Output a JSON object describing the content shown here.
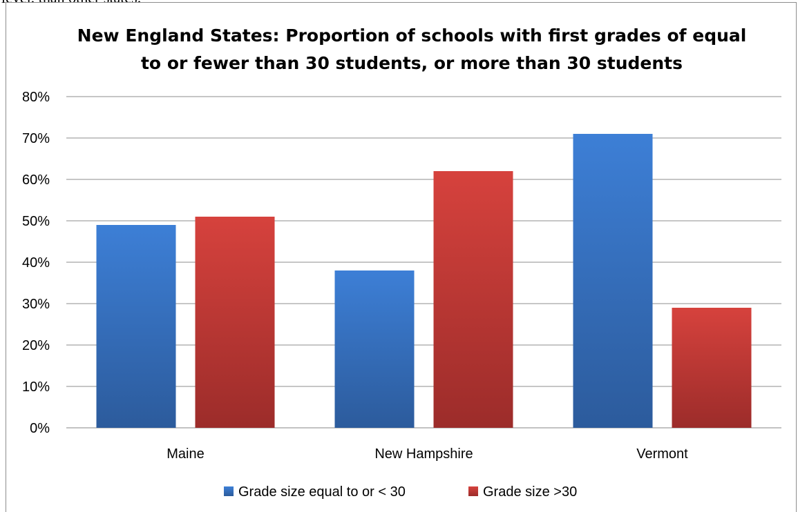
{
  "page": {
    "cropped_text": "level, than other states."
  },
  "chart_data": {
    "type": "bar",
    "title_lines": [
      "New England States: Proportion of schools with first grades of equal",
      "to or fewer than 30 students, or more than 30 students"
    ],
    "categories": [
      "Maine",
      "New Hampshire",
      "Vermont"
    ],
    "series": [
      {
        "name": "Grade size equal to or < 30",
        "values": [
          0.49,
          0.38,
          0.71
        ],
        "color": "#3b73c0"
      },
      {
        "name": "Grade size >30",
        "values": [
          0.51,
          0.62,
          0.29
        ],
        "color": "#c0403b"
      }
    ],
    "ylim": [
      0,
      0.8
    ],
    "yticks": [
      0,
      0.1,
      0.2,
      0.3,
      0.4,
      0.5,
      0.6,
      0.7,
      0.8
    ],
    "ytick_labels": [
      "0%",
      "10%",
      "20%",
      "30%",
      "40%",
      "50%",
      "60%",
      "70%",
      "80%"
    ],
    "xlabel": "",
    "ylabel": "",
    "grid": true,
    "legend_position": "bottom"
  }
}
